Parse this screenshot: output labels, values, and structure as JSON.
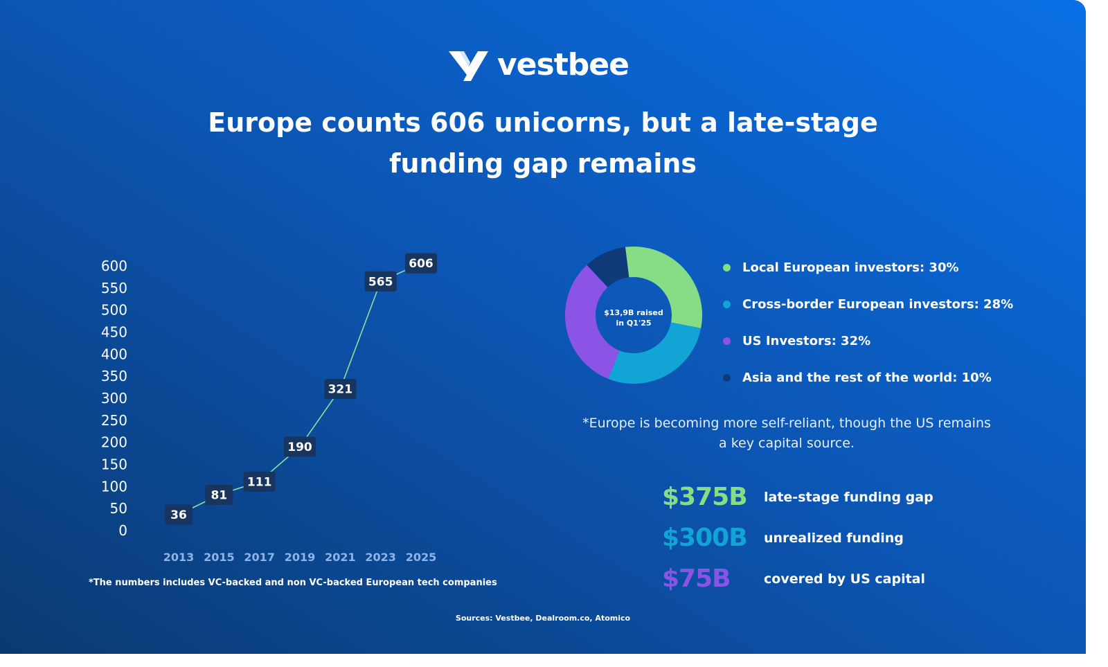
{
  "brand": {
    "name": "vestbee"
  },
  "title": {
    "line1": "Europe counts 606 unicorns, but a late-stage",
    "line2": "funding gap remains"
  },
  "chart_data": [
    {
      "type": "line",
      "x": [
        "2013",
        "2015",
        "2017",
        "2019",
        "2021",
        "2023",
        "2025"
      ],
      "values": [
        36,
        81,
        111,
        190,
        321,
        565,
        606
      ],
      "ylim": [
        0,
        600
      ],
      "yticks": [
        "0",
        "50",
        "100",
        "150",
        "200",
        "250",
        "300",
        "350",
        "400",
        "450",
        "500",
        "550",
        "600"
      ],
      "grid": true,
      "colors": {
        "line": "#8ce29a",
        "label_bg": "#17355e",
        "axis_text": "#ffffff",
        "x_text": "#8fb4e8"
      }
    },
    {
      "type": "pie",
      "center_text": [
        "$13,9B raised",
        "in Q1'25"
      ],
      "slices": [
        {
          "label": "Local European investors: 30%",
          "value": 30,
          "color": "#86dd85"
        },
        {
          "label": "Cross-border European investors: 28%",
          "value": 28,
          "color": "#13a4d6"
        },
        {
          "label": "US Investors: 32%",
          "value": 32,
          "color": "#8b54e6"
        },
        {
          "label": "Asia and the rest of the world: 10%",
          "value": 10,
          "color": "#0f3a7a"
        }
      ]
    }
  ],
  "footnote": "*The numbers includes VC-backed and non VC-backed European tech companies",
  "note": {
    "line1": "*Europe is becoming more self-reliant, though the US remains",
    "line2": "a key capital source."
  },
  "stats": [
    {
      "value": "$375B",
      "label": "late-stage funding gap",
      "color": "#86dd85"
    },
    {
      "value": "$300B",
      "label": "unrealized funding",
      "color": "#13a4d6"
    },
    {
      "value": "$75B",
      "label": "covered by US capital",
      "color": "#8b54e6"
    }
  ],
  "sources": "Sources: Vestbee, Dealroom.co, Atomico"
}
